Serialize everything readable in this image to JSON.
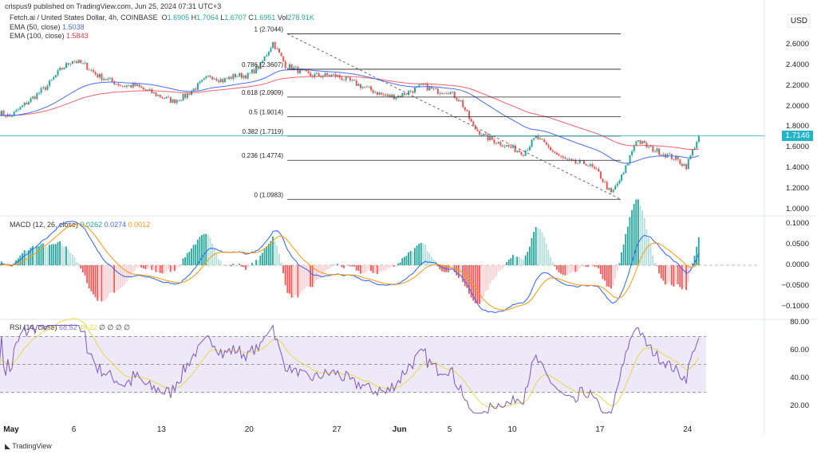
{
  "header": {
    "published": "crispus9 published on TradingView.com, Jun 25, 2024 07:31 UTC+3"
  },
  "symbol": {
    "name": "Fetch.ai / United States Dollar, 4h, COINBASE",
    "o_label": "O",
    "o": "1.6905",
    "h_label": "H",
    "h": "1.7064",
    "l_label": "L",
    "l": "1.6707",
    "c_label": "C",
    "c": "1.6951",
    "vol_label": "Vol",
    "vol": "278.91K"
  },
  "ema50": {
    "label": "EMA (50, close)",
    "value": "1.5038",
    "color": "#4a6cf7"
  },
  "ema100": {
    "label": "EMA (100, close)",
    "value": "1.5843",
    "color": "#f23645"
  },
  "macd": {
    "label": "MACD (12, 26, close)",
    "hist": "0.0262",
    "macd": "0.0274",
    "signal": "0.0012"
  },
  "rsi": {
    "label": "RSI (14, close)",
    "value": "68.52",
    "ma": "48.22",
    "extra": "∅ ∅ ∅ ∅"
  },
  "price_axis": {
    "currency": "USD",
    "ticks": [
      "2.6000",
      "2.4000",
      "2.2000",
      "2.0000",
      "1.8000",
      "1.6000",
      "1.4000",
      "1.2000",
      "1.0000"
    ],
    "current": "1.7146"
  },
  "macd_axis": [
    "0.1000",
    "0.0500",
    "0.0000",
    "−0.0500",
    "−0.1000"
  ],
  "rsi_axis": [
    "80.00",
    "60.00",
    "40.00",
    "20.00"
  ],
  "x_axis": [
    "May",
    "6",
    "13",
    "20",
    "27",
    "Jun",
    "5",
    "10",
    "17",
    "24"
  ],
  "fib": [
    {
      "label": "1 (2.7044)",
      "price": 2.7044
    },
    {
      "label": "0.786 (2.3607)",
      "price": 2.3607
    },
    {
      "label": "0.618 (2.0909)",
      "price": 2.0909
    },
    {
      "label": "0.5 (1.9014)",
      "price": 1.9014
    },
    {
      "label": "0.382 (1.7119)",
      "price": 1.7119
    },
    {
      "label": "0.236 (1.4774)",
      "price": 1.4774
    },
    {
      "label": "0 (1.0983)",
      "price": 1.0983
    }
  ],
  "footer": {
    "brand": "TradingView"
  },
  "chart_data": {
    "type": "candlestick",
    "title": "Fetch.ai / United States Dollar, 4h",
    "start": "Apr 30",
    "daily_close": [
      1.95,
      1.9,
      2.0,
      2.1,
      2.2,
      2.35,
      2.45,
      2.4,
      2.3,
      2.25,
      2.2,
      2.2,
      2.15,
      2.1,
      2.05,
      2.1,
      2.2,
      2.3,
      2.25,
      2.3,
      2.3,
      2.4,
      2.62,
      2.4,
      2.35,
      2.3,
      2.3,
      2.3,
      2.25,
      2.2,
      2.15,
      2.1,
      2.1,
      2.15,
      2.2,
      2.15,
      2.15,
      2.05,
      1.8,
      1.7,
      1.65,
      1.6,
      1.55,
      1.7,
      1.6,
      1.5,
      1.45,
      1.45,
      1.35,
      1.15,
      1.35,
      1.68,
      1.6,
      1.55,
      1.5,
      1.42,
      1.7146
    ],
    "ylim": [
      0.95,
      2.75
    ]
  }
}
